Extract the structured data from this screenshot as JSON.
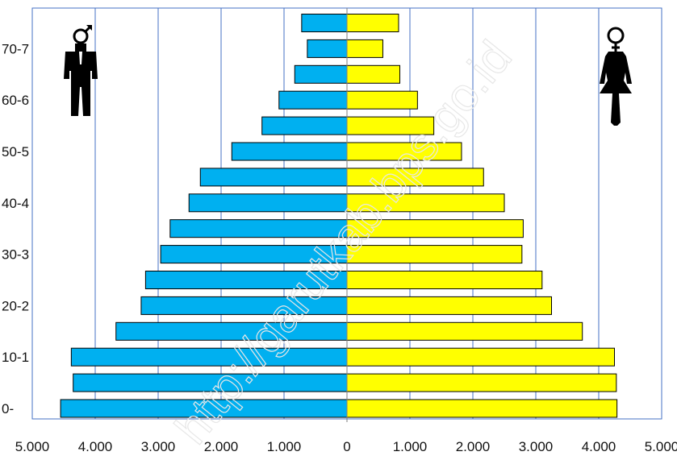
{
  "chart_data": {
    "type": "bar",
    "orientation": "horizontal",
    "layout": "population-pyramid",
    "title": "",
    "xlim": [
      -5000,
      5000
    ],
    "x_tick_values": [
      -5000,
      -4000,
      -3000,
      -2000,
      -1000,
      0,
      1000,
      2000,
      3000,
      4000,
      5000
    ],
    "x_tick_labels": [
      "5.000",
      "4.000",
      "3.000",
      "2.000",
      "1.000",
      "0",
      "1.000",
      "2.000",
      "3.000",
      "4.000",
      "5.000"
    ],
    "y_tick_labels": [
      {
        "label": "0-",
        "row": 0
      },
      {
        "label": "10-1",
        "row": 2
      },
      {
        "label": "20-2",
        "row": 4
      },
      {
        "label": "30-3",
        "row": 6
      },
      {
        "label": "40-4",
        "row": 8
      },
      {
        "label": "50-5",
        "row": 10
      },
      {
        "label": "60-6",
        "row": 12
      },
      {
        "label": "70-7",
        "row": 14
      }
    ],
    "row_count": 16,
    "series": [
      {
        "side": "left",
        "color": "#00b0f0",
        "values": [
          4550,
          4350,
          4380,
          3670,
          3270,
          3200,
          2960,
          2810,
          2510,
          2330,
          1830,
          1350,
          1080,
          830,
          630,
          720
        ]
      },
      {
        "side": "right",
        "color": "#ffff00",
        "values": [
          4290,
          4280,
          4250,
          3740,
          3250,
          3100,
          2780,
          2800,
          2500,
          2170,
          1820,
          1380,
          1120,
          840,
          570,
          820
        ]
      }
    ],
    "grid": {
      "vertical": true,
      "horizontal": false,
      "color": "#4472c4"
    },
    "icons": {
      "left": "male-figure-icon",
      "right": "female-figure-icon"
    }
  },
  "watermark": {
    "text": "http://garutkab.bps.go.id"
  }
}
